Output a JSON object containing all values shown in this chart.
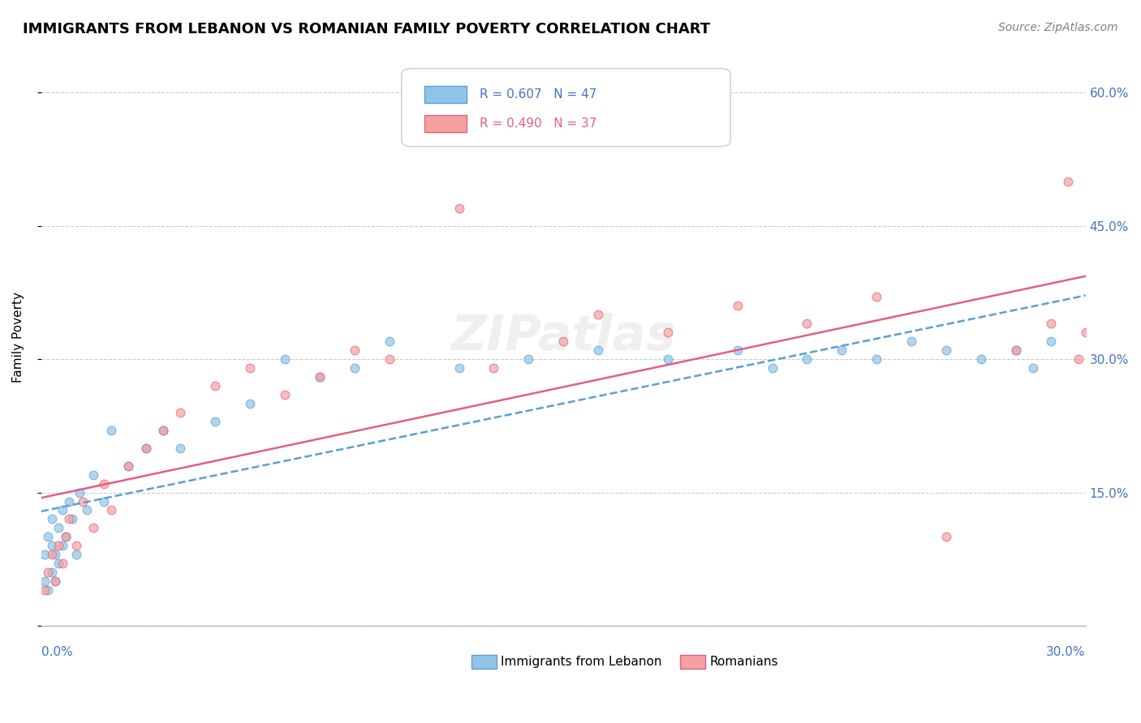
{
  "title": "IMMIGRANTS FROM LEBANON VS ROMANIAN FAMILY POVERTY CORRELATION CHART",
  "source": "Source: ZipAtlas.com",
  "ylabel": "Family Poverty",
  "y_ticks": [
    0.0,
    0.15,
    0.3,
    0.45,
    0.6
  ],
  "y_tick_labels": [
    "",
    "15.0%",
    "30.0%",
    "45.0%",
    "60.0%"
  ],
  "x_lim": [
    0.0,
    0.3
  ],
  "y_lim": [
    0.0,
    0.65
  ],
  "legend_line1": "R = 0.607   N = 47",
  "legend_line2": "R = 0.490   N = 37",
  "legend_label1": "Immigrants from Lebanon",
  "legend_label2": "Romanians",
  "color_blue_fill": "#90c4e8",
  "color_blue_edge": "#5a9fd4",
  "color_pink_fill": "#f4a0a0",
  "color_pink_edge": "#e06080",
  "color_blue_text": "#4472c4",
  "watermark": "ZIPatlas",
  "lebanon_x": [
    0.001,
    0.001,
    0.002,
    0.002,
    0.003,
    0.003,
    0.003,
    0.004,
    0.004,
    0.005,
    0.005,
    0.006,
    0.006,
    0.007,
    0.008,
    0.009,
    0.01,
    0.011,
    0.013,
    0.015,
    0.018,
    0.02,
    0.025,
    0.03,
    0.035,
    0.04,
    0.05,
    0.06,
    0.07,
    0.08,
    0.09,
    0.1,
    0.12,
    0.14,
    0.16,
    0.18,
    0.2,
    0.21,
    0.22,
    0.23,
    0.24,
    0.25,
    0.26,
    0.27,
    0.28,
    0.285,
    0.29
  ],
  "lebanon_y": [
    0.05,
    0.08,
    0.04,
    0.1,
    0.06,
    0.09,
    0.12,
    0.05,
    0.08,
    0.07,
    0.11,
    0.09,
    0.13,
    0.1,
    0.14,
    0.12,
    0.08,
    0.15,
    0.13,
    0.17,
    0.14,
    0.22,
    0.18,
    0.2,
    0.22,
    0.2,
    0.23,
    0.25,
    0.3,
    0.28,
    0.29,
    0.32,
    0.29,
    0.3,
    0.31,
    0.3,
    0.31,
    0.29,
    0.3,
    0.31,
    0.3,
    0.32,
    0.31,
    0.3,
    0.31,
    0.29,
    0.32
  ],
  "romanian_x": [
    0.001,
    0.002,
    0.003,
    0.004,
    0.005,
    0.006,
    0.007,
    0.008,
    0.01,
    0.012,
    0.015,
    0.018,
    0.02,
    0.025,
    0.03,
    0.035,
    0.04,
    0.05,
    0.06,
    0.07,
    0.08,
    0.09,
    0.1,
    0.12,
    0.13,
    0.15,
    0.16,
    0.18,
    0.2,
    0.22,
    0.24,
    0.26,
    0.28,
    0.29,
    0.295,
    0.298,
    0.3
  ],
  "romanian_y": [
    0.04,
    0.06,
    0.08,
    0.05,
    0.09,
    0.07,
    0.1,
    0.12,
    0.09,
    0.14,
    0.11,
    0.16,
    0.13,
    0.18,
    0.2,
    0.22,
    0.24,
    0.27,
    0.29,
    0.26,
    0.28,
    0.31,
    0.3,
    0.47,
    0.29,
    0.32,
    0.35,
    0.33,
    0.36,
    0.34,
    0.37,
    0.1,
    0.31,
    0.34,
    0.5,
    0.3,
    0.33
  ]
}
